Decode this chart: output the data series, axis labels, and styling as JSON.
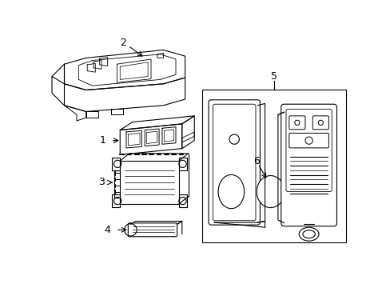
{
  "bg_color": "#ffffff",
  "line_color": "#000000",
  "fig_width": 4.89,
  "fig_height": 3.6,
  "dpi": 100,
  "lw": 0.8
}
